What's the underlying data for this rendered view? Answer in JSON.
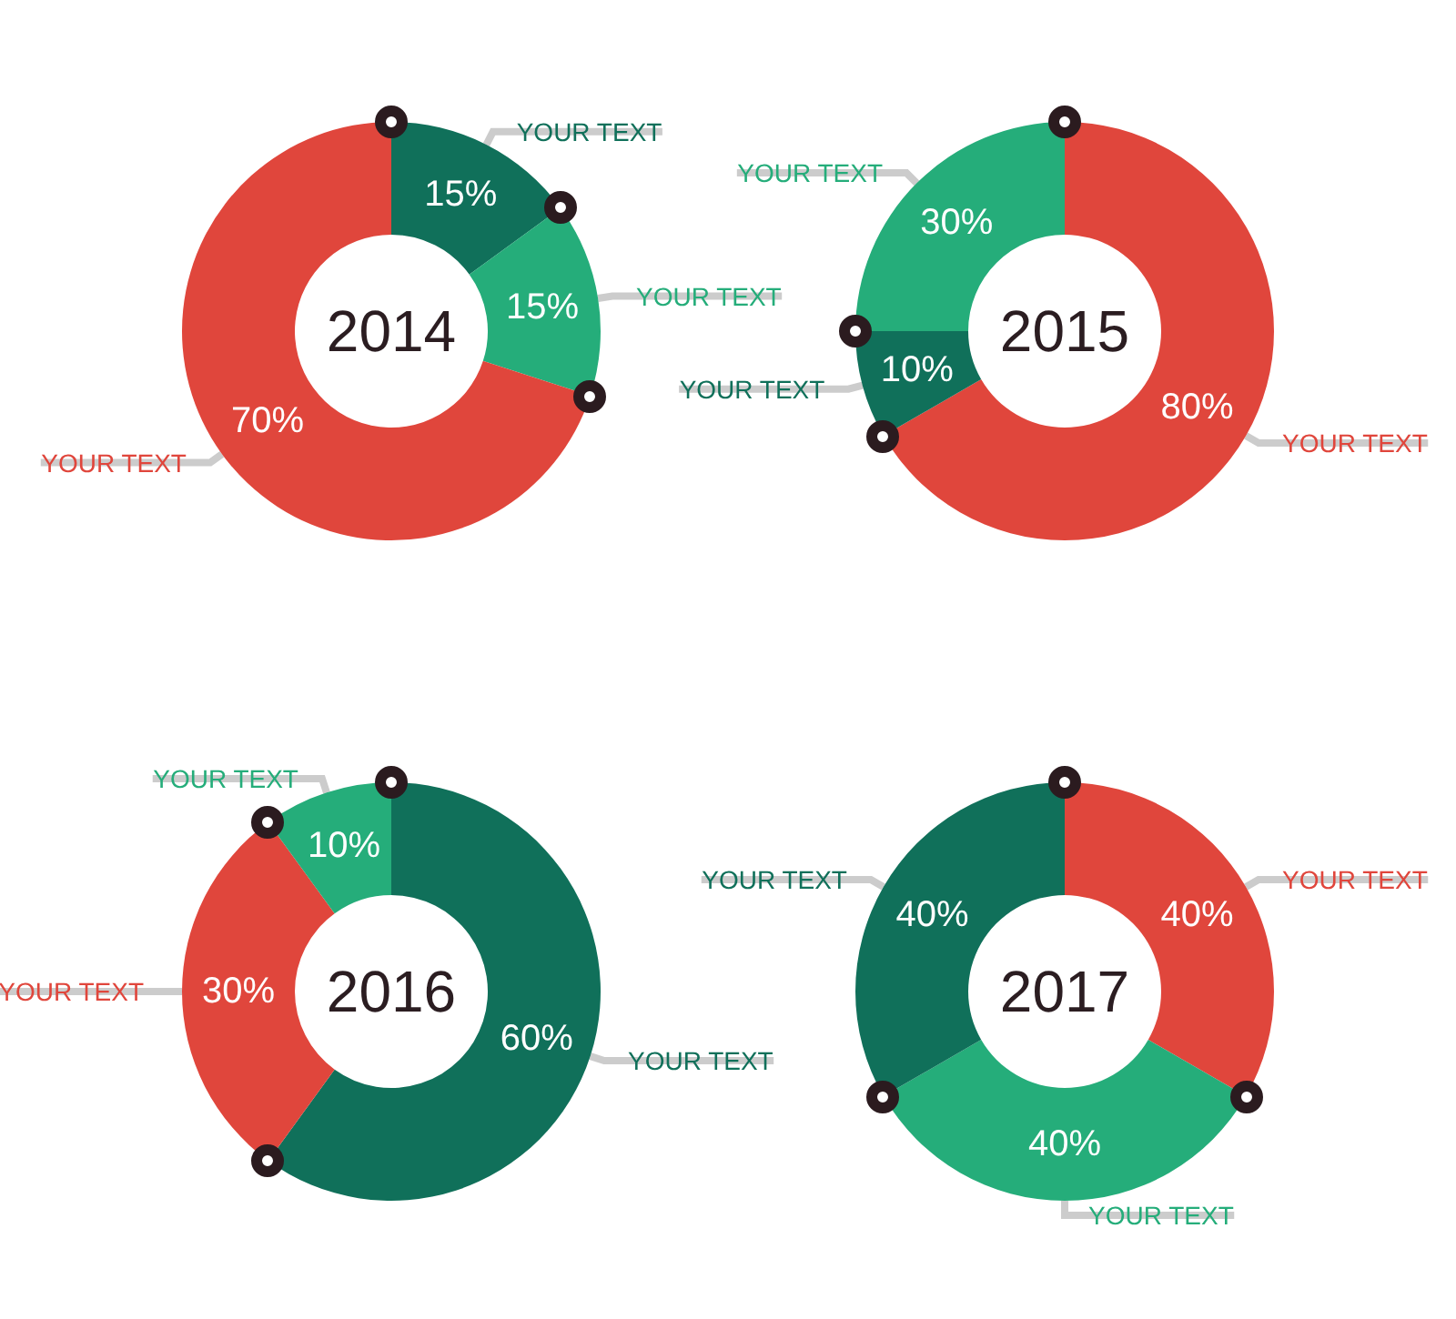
{
  "chart_data": [
    {
      "type": "donut",
      "title": "2014",
      "categories": [
        "YOUR TEXT",
        "YOUR TEXT",
        "YOUR TEXT"
      ],
      "values": [
        15,
        15,
        70
      ],
      "colors": [
        "#10705a",
        "#25ad7a",
        "#e0463c"
      ],
      "value_labels": [
        "15%",
        "15%",
        "70%"
      ]
    },
    {
      "type": "donut",
      "title": "2015",
      "categories": [
        "YOUR TEXT",
        "YOUR TEXT",
        "YOUR TEXT"
      ],
      "values": [
        80,
        10,
        30
      ],
      "colors": [
        "#e0463c",
        "#10705a",
        "#25ad7a"
      ],
      "value_labels": [
        "80%",
        "10%",
        "30%"
      ]
    },
    {
      "type": "donut",
      "title": "2016",
      "categories": [
        "YOUR TEXT",
        "YOUR TEXT",
        "YOUR TEXT"
      ],
      "values": [
        60,
        30,
        10
      ],
      "colors": [
        "#10705a",
        "#e0463c",
        "#25ad7a"
      ],
      "value_labels": [
        "60%",
        "30%",
        "10%"
      ]
    },
    {
      "type": "donut",
      "title": "2017",
      "categories": [
        "YOUR TEXT",
        "YOUR TEXT",
        "YOUR TEXT"
      ],
      "values": [
        40,
        40,
        40
      ],
      "colors": [
        "#e0463c",
        "#25ad7a",
        "#10705a"
      ],
      "value_labels": [
        "40%",
        "40%",
        "40%"
      ]
    }
  ]
}
